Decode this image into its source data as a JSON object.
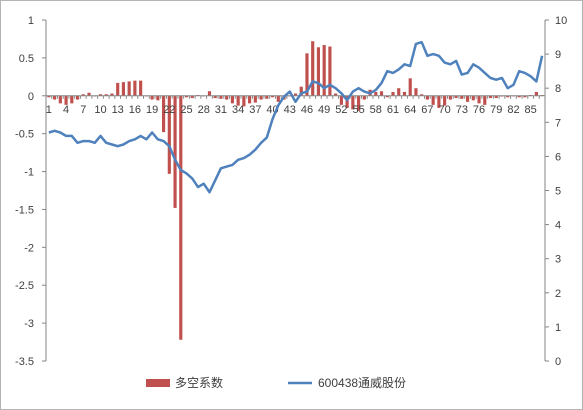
{
  "chart_data": {
    "type": "bar+line",
    "title": "",
    "y_left": {
      "ticks": [
        "1",
        "0.5",
        "0",
        "-0.5",
        "-1",
        "-1.5",
        "-2",
        "-2.5",
        "-3",
        "-3.5"
      ],
      "ylim": [
        -3.5,
        1
      ]
    },
    "y_right": {
      "ticks": [
        "10",
        "9",
        "8",
        "7",
        "6",
        "5",
        "4",
        "3",
        "2",
        "1",
        "0"
      ],
      "ylim": [
        0,
        10
      ]
    },
    "x": {
      "count": 87,
      "tick_labels": [
        "1",
        "4",
        "7",
        "10",
        "13",
        "16",
        "19",
        "22",
        "25",
        "28",
        "31",
        "34",
        "37",
        "40",
        "43",
        "46",
        "49",
        "52",
        "55",
        "58",
        "61",
        "64",
        "67",
        "70",
        "73",
        "76",
        "79",
        "82",
        "85"
      ]
    },
    "series": [
      {
        "name": "多空系数",
        "type": "bar",
        "axis": "left",
        "color": "#c0504d",
        "values": [
          -0.02,
          -0.05,
          -0.1,
          -0.12,
          -0.1,
          -0.05,
          0.02,
          0.04,
          0.0,
          0.02,
          0.02,
          0.03,
          0.17,
          0.18,
          0.19,
          0.2,
          0.2,
          0.0,
          -0.05,
          -0.06,
          -0.48,
          -1.03,
          -1.48,
          -3.22,
          -0.02,
          -0.03,
          0.01,
          0.0,
          0.06,
          -0.03,
          -0.04,
          -0.05,
          -0.1,
          -0.13,
          -0.14,
          -0.1,
          -0.09,
          -0.05,
          -0.04,
          -0.02,
          -0.08,
          -0.05,
          0.0,
          0.03,
          0.12,
          0.56,
          0.72,
          0.64,
          0.67,
          0.65,
          0.03,
          -0.12,
          -0.16,
          -0.18,
          -0.2,
          -0.05,
          0.08,
          0.05,
          0.06,
          -0.02,
          0.05,
          0.1,
          0.05,
          0.23,
          0.1,
          0.02,
          -0.05,
          -0.12,
          -0.16,
          -0.13,
          -0.05,
          -0.03,
          -0.04,
          -0.08,
          -0.06,
          -0.1,
          -0.12,
          -0.03,
          -0.03,
          -0.01,
          -0.02,
          0.0,
          -0.02,
          -0.02,
          0.01,
          0.05,
          0.01
        ]
      },
      {
        "name": "600438通威股份",
        "type": "line",
        "axis": "right",
        "color": "#4f81bd",
        "values": [
          6.7,
          6.75,
          6.7,
          6.6,
          6.6,
          6.4,
          6.45,
          6.45,
          6.4,
          6.6,
          6.4,
          6.35,
          6.3,
          6.35,
          6.45,
          6.5,
          6.6,
          6.5,
          6.7,
          6.5,
          6.45,
          6.3,
          5.9,
          5.6,
          5.5,
          5.35,
          5.1,
          5.2,
          4.95,
          5.3,
          5.65,
          5.7,
          5.75,
          5.9,
          5.95,
          6.05,
          6.2,
          6.4,
          6.55,
          7.1,
          7.5,
          7.75,
          7.9,
          7.6,
          7.85,
          7.9,
          8.2,
          8.15,
          8.0,
          8.1,
          8.0,
          7.85,
          7.65,
          7.9,
          8.0,
          7.9,
          7.85,
          7.95,
          8.15,
          8.5,
          8.45,
          8.55,
          8.7,
          8.65,
          9.3,
          9.35,
          8.95,
          9.0,
          8.95,
          8.75,
          8.7,
          8.8,
          8.4,
          8.45,
          8.7,
          8.6,
          8.45,
          8.3,
          8.25,
          8.3,
          8.0,
          8.1,
          8.5,
          8.45,
          8.35,
          8.2,
          8.95
        ]
      }
    ],
    "legend": {
      "position": "bottom"
    },
    "grid": false
  }
}
